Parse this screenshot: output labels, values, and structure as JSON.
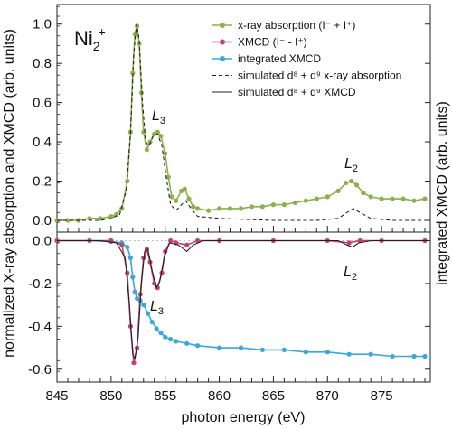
{
  "chart_data": {
    "type": "line",
    "xlabel": "photon energy (eV)",
    "ylabel_left": "normalized X-ray absorption and XMCD (arb. units)",
    "ylabel_right": "integrated XMCD (arb. units)",
    "xlim": [
      845,
      879.5
    ],
    "x_ticks": [
      845,
      850,
      855,
      860,
      865,
      870,
      875
    ],
    "annotations": {
      "ion_base": "Ni",
      "ion_sub": "2",
      "ion_sup": "+",
      "l3_upper": "L",
      "l3_upper_sub": "3",
      "l2_upper": "L",
      "l2_upper_sub": "2",
      "l3_lower": "L",
      "l3_lower_sub": "3",
      "l2_lower": "L",
      "l2_lower_sub": "2"
    },
    "legend": [
      {
        "text": "x-ray absorption (I⁻ + I⁺)",
        "marker": "dot-line",
        "color": "#8cb04a"
      },
      {
        "text": "XMCD (I⁻ - I⁺)",
        "marker": "dot-line",
        "color": "#c0426d"
      },
      {
        "text": "integrated XMCD",
        "marker": "dot-line",
        "color": "#3aa8d8"
      },
      {
        "text": "simulated d⁸ + d⁹ x-ray absorption",
        "marker": "dashed",
        "color": "#222222"
      },
      {
        "text": "simulated d⁸ + d⁹ XMCD",
        "marker": "solid",
        "color": "#222222"
      }
    ],
    "panels": [
      {
        "name": "top",
        "ylim": [
          -0.06,
          1.1
        ],
        "y_ticks": [
          0.0,
          0.2,
          0.4,
          0.6,
          0.8,
          1.0
        ],
        "y_tick_labels": [
          "0.0",
          "0.2",
          "0.4",
          "0.6",
          "0.8",
          "1.0"
        ],
        "series": [
          {
            "name": "x-ray absorption (I⁻ + I⁺)",
            "style": "dots",
            "color": "#8cb04a",
            "points": [
              [
                845,
                0.0
              ],
              [
                846,
                0.0
              ],
              [
                847,
                0.0
              ],
              [
                848,
                0.01
              ],
              [
                849,
                0.01
              ],
              [
                850,
                0.02
              ],
              [
                850.5,
                0.03
              ],
              [
                851,
                0.06
              ],
              [
                851.5,
                0.2
              ],
              [
                851.8,
                0.45
              ],
              [
                852,
                0.75
              ],
              [
                852.2,
                0.95
              ],
              [
                852.4,
                0.99
              ],
              [
                852.6,
                0.9
              ],
              [
                852.8,
                0.65
              ],
              [
                853,
                0.45
              ],
              [
                853.3,
                0.36
              ],
              [
                853.6,
                0.4
              ],
              [
                854,
                0.44
              ],
              [
                854.3,
                0.45
              ],
              [
                854.6,
                0.43
              ],
              [
                855,
                0.34
              ],
              [
                855.3,
                0.22
              ],
              [
                855.6,
                0.12
              ],
              [
                856,
                0.1
              ],
              [
                856.5,
                0.15
              ],
              [
                856.8,
                0.16
              ],
              [
                857.2,
                0.11
              ],
              [
                857.6,
                0.07
              ],
              [
                858,
                0.06
              ],
              [
                859,
                0.05
              ],
              [
                860,
                0.06
              ],
              [
                861,
                0.06
              ],
              [
                862,
                0.06
              ],
              [
                863,
                0.07
              ],
              [
                864,
                0.07
              ],
              [
                865,
                0.08
              ],
              [
                866,
                0.08
              ],
              [
                867,
                0.09
              ],
              [
                868,
                0.1
              ],
              [
                869,
                0.11
              ],
              [
                870,
                0.12
              ],
              [
                871,
                0.15
              ],
              [
                871.7,
                0.19
              ],
              [
                872.2,
                0.2
              ],
              [
                872.7,
                0.18
              ],
              [
                873.3,
                0.14
              ],
              [
                874,
                0.12
              ],
              [
                875,
                0.11
              ],
              [
                876,
                0.11
              ],
              [
                877,
                0.11
              ],
              [
                878,
                0.1
              ],
              [
                879,
                0.11
              ]
            ]
          },
          {
            "name": "simulated d⁸ + d⁹ x-ray absorption",
            "style": "dashed",
            "color": "#222222",
            "points": [
              [
                845,
                0.0
              ],
              [
                849,
                0.0
              ],
              [
                850,
                0.01
              ],
              [
                850.8,
                0.03
              ],
              [
                851.4,
                0.15
              ],
              [
                851.8,
                0.45
              ],
              [
                852.1,
                0.85
              ],
              [
                852.35,
                1.0
              ],
              [
                852.6,
                0.92
              ],
              [
                852.9,
                0.6
              ],
              [
                853.2,
                0.4
              ],
              [
                853.5,
                0.38
              ],
              [
                853.9,
                0.43
              ],
              [
                854.3,
                0.44
              ],
              [
                854.7,
                0.38
              ],
              [
                855.1,
                0.22
              ],
              [
                855.5,
                0.08
              ],
              [
                856,
                0.05
              ],
              [
                856.5,
                0.08
              ],
              [
                856.9,
                0.1
              ],
              [
                857.4,
                0.06
              ],
              [
                858,
                0.02
              ],
              [
                860,
                0.01
              ],
              [
                865,
                0.0
              ],
              [
                869,
                0.0
              ],
              [
                871,
                0.01
              ],
              [
                871.8,
                0.04
              ],
              [
                872.4,
                0.06
              ],
              [
                873,
                0.04
              ],
              [
                874,
                0.01
              ],
              [
                876,
                0.0
              ],
              [
                879,
                0.0
              ]
            ]
          }
        ]
      },
      {
        "name": "bottom",
        "ylim": [
          -0.66,
          0.04
        ],
        "y_ticks": [
          0.0,
          -0.2,
          -0.4,
          -0.6
        ],
        "y_tick_labels": [
          "0.0",
          "-0.2",
          "-0.4",
          "-0.6"
        ],
        "series": [
          {
            "name": "integrated XMCD",
            "style": "dots",
            "color": "#3aa8d8",
            "points": [
              [
                845,
                0.0
              ],
              [
                848,
                0.0
              ],
              [
                850,
                -0.005
              ],
              [
                851,
                -0.01
              ],
              [
                851.5,
                -0.03
              ],
              [
                851.8,
                -0.08
              ],
              [
                852,
                -0.17
              ],
              [
                852.2,
                -0.24
              ],
              [
                852.4,
                -0.27
              ],
              [
                852.7,
                -0.28
              ],
              [
                853,
                -0.3
              ],
              [
                853.4,
                -0.34
              ],
              [
                853.8,
                -0.38
              ],
              [
                854.2,
                -0.41
              ],
              [
                854.6,
                -0.43
              ],
              [
                855,
                -0.45
              ],
              [
                855.5,
                -0.46
              ],
              [
                856,
                -0.47
              ],
              [
                857,
                -0.48
              ],
              [
                858,
                -0.49
              ],
              [
                860,
                -0.5
              ],
              [
                862,
                -0.5
              ],
              [
                864,
                -0.51
              ],
              [
                866,
                -0.51
              ],
              [
                868,
                -0.52
              ],
              [
                870,
                -0.52
              ],
              [
                872,
                -0.53
              ],
              [
                874,
                -0.53
              ],
              [
                876,
                -0.54
              ],
              [
                878,
                -0.54
              ],
              [
                879,
                -0.54
              ]
            ]
          },
          {
            "name": "XMCD (I⁻ - I⁺)",
            "style": "dots",
            "color": "#c0426d",
            "points": [
              [
                845,
                0.0
              ],
              [
                848,
                0.0
              ],
              [
                850,
                0.0
              ],
              [
                851,
                -0.02
              ],
              [
                851.5,
                -0.15
              ],
              [
                851.8,
                -0.4
              ],
              [
                852.1,
                -0.57
              ],
              [
                852.4,
                -0.5
              ],
              [
                852.7,
                -0.25
              ],
              [
                853,
                -0.08
              ],
              [
                853.3,
                -0.04
              ],
              [
                853.6,
                -0.1
              ],
              [
                854,
                -0.2
              ],
              [
                854.3,
                -0.22
              ],
              [
                854.7,
                -0.15
              ],
              [
                855,
                -0.05
              ],
              [
                855.5,
                0.0
              ],
              [
                856,
                -0.01
              ],
              [
                857,
                -0.02
              ],
              [
                858,
                0.0
              ],
              [
                860,
                0.0
              ],
              [
                865,
                0.0
              ],
              [
                870,
                0.0
              ],
              [
                872,
                -0.01
              ],
              [
                873,
                0.0
              ],
              [
                875,
                0.0
              ],
              [
                879,
                0.0
              ]
            ]
          },
          {
            "name": "simulated d⁸ + d⁹ XMCD",
            "style": "solid",
            "color": "#222222",
            "points": [
              [
                845,
                0.0
              ],
              [
                849,
                0.0
              ],
              [
                850.5,
                -0.01
              ],
              [
                851.3,
                -0.08
              ],
              [
                851.7,
                -0.3
              ],
              [
                852,
                -0.53
              ],
              [
                852.2,
                -0.55
              ],
              [
                852.5,
                -0.45
              ],
              [
                852.8,
                -0.2
              ],
              [
                853.1,
                -0.05
              ],
              [
                853.4,
                -0.04
              ],
              [
                853.8,
                -0.14
              ],
              [
                854.2,
                -0.22
              ],
              [
                854.5,
                -0.19
              ],
              [
                854.9,
                -0.08
              ],
              [
                855.4,
                -0.01
              ],
              [
                856.2,
                -0.02
              ],
              [
                857,
                -0.05
              ],
              [
                857.6,
                -0.02
              ],
              [
                858.5,
                0.0
              ],
              [
                865,
                0.0
              ],
              [
                871,
                0.0
              ],
              [
                871.8,
                -0.02
              ],
              [
                872.3,
                -0.03
              ],
              [
                872.9,
                -0.01
              ],
              [
                874,
                0.0
              ],
              [
                879,
                0.0
              ]
            ]
          }
        ]
      }
    ]
  }
}
